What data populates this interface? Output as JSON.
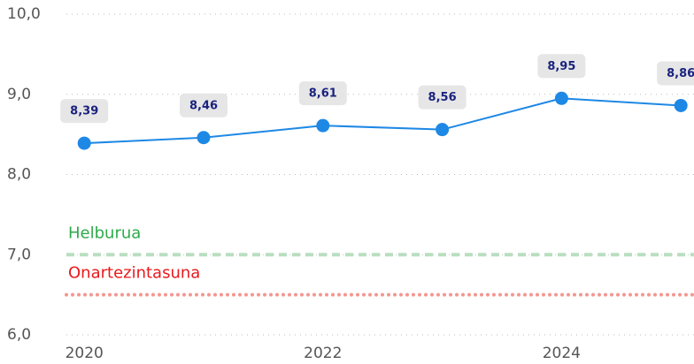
{
  "chart_data": {
    "type": "line",
    "x": [
      2020,
      2021,
      2022,
      2023,
      2024,
      2025
    ],
    "series": [
      {
        "color": "#1e88e5",
        "values": [
          8.39,
          8.46,
          8.61,
          8.56,
          8.95,
          8.86
        ],
        "value_labels": [
          "8,39",
          "8,46",
          "8,61",
          "8,56",
          "8,95",
          "8,86"
        ]
      }
    ],
    "xlim": [
      2019.85,
      2025.11
    ],
    "xticks": [
      2020,
      2022,
      2024
    ],
    "ylim": [
      6,
      10
    ],
    "yticks": [
      {
        "value": 6,
        "label": "6,0"
      },
      {
        "value": 7,
        "label": "7,0"
      },
      {
        "value": 8,
        "label": "8,0"
      },
      {
        "value": 9,
        "label": "9,0"
      },
      {
        "value": 10,
        "label": "10,0"
      }
    ],
    "grid": true,
    "reference_lines": [
      {
        "name": "Helburua",
        "value": 7,
        "color": "#2eaa4a",
        "line_color": "#b9dfc0",
        "style": "dashed"
      },
      {
        "name": "Onartezintasuna",
        "value": 6.5,
        "color": "#e8191c",
        "line_color": "#f4958f",
        "style": "dotted"
      }
    ]
  }
}
